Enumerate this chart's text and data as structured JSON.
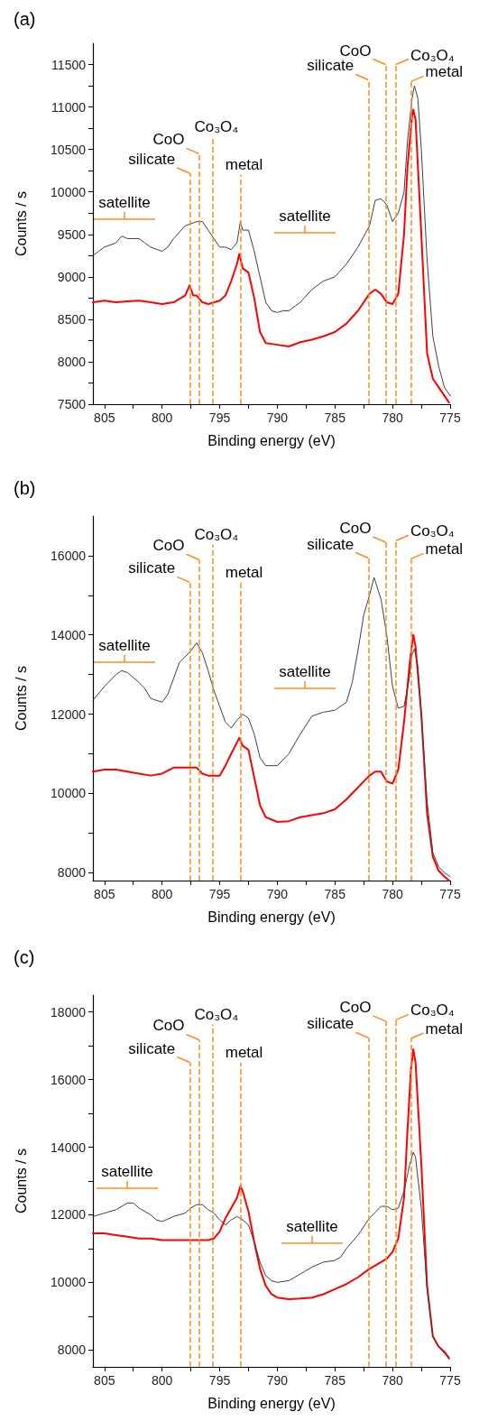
{
  "chart_data": [
    {
      "type": "line",
      "title": "(a)",
      "xlabel": "Binding energy (eV)",
      "ylabel": "Counts / s",
      "xlim": [
        806,
        775
      ],
      "xticks": [
        805,
        {
          "value": 802.5,
          "label": null
        },
        800,
        {
          "value": 797.5,
          "label": null
        },
        795,
        {
          "value": 792.5,
          "label": null
        },
        790,
        {
          "value": 787.5,
          "label": null
        },
        785,
        {
          "value": 782.5,
          "label": null
        },
        780,
        {
          "value": 777.5,
          "label": null
        },
        775
      ],
      "ylim": [
        7500,
        11750
      ],
      "yticks": [
        7500,
        {
          "value": 7750,
          "label": null
        },
        8000,
        {
          "value": 8250,
          "label": null
        },
        8500,
        {
          "value": 8750,
          "label": null
        },
        9000,
        {
          "value": 9250,
          "label": null
        },
        9500,
        {
          "value": 9750,
          "label": null
        },
        10000,
        {
          "value": 10250,
          "label": null
        },
        10500,
        {
          "value": 10750,
          "label": null
        },
        11000,
        {
          "value": 11250,
          "label": null
        },
        11500
      ],
      "ref_lines": [
        {
          "axis": "x",
          "value": 797.6,
          "color": "#ff8c1a",
          "line_style": "dashed"
        },
        {
          "axis": "x",
          "value": 796.8,
          "color": "#ff8c1a",
          "line_style": "dashed"
        },
        {
          "axis": "x",
          "value": 795.6,
          "color": "#ff8c1a",
          "line_style": "dashed"
        },
        {
          "axis": "x",
          "value": 793.2,
          "color": "#ff8c1a",
          "line_style": "dashed"
        },
        {
          "axis": "x",
          "value": 782.1,
          "color": "#ff8c1a",
          "line_style": "dashed"
        },
        {
          "axis": "x",
          "value": 780.6,
          "color": "#ff8c1a",
          "line_style": "dashed"
        },
        {
          "axis": "x",
          "value": 779.7,
          "color": "#ff8c1a",
          "line_style": "dashed"
        },
        {
          "axis": "x",
          "value": 778.4,
          "color": "#ff8c1a",
          "line_style": "dashed"
        }
      ],
      "annotations": [
        "satellite",
        "satellite",
        {
          "text": "silicate",
          "x": 797.6,
          "y": 10220
        },
        {
          "text": "CoO",
          "x": 796.8,
          "y": 10450
        },
        {
          "text": "Co₃O₄",
          "x": 795.6,
          "y": 10650
        },
        {
          "text": "metal",
          "x": 793.2,
          "y": 10200
        },
        {
          "text": "silicate",
          "x": 782.1,
          "y": 11320
        },
        {
          "text": "CoO",
          "x": 780.6,
          "y": 11500
        },
        {
          "text": "Co₃O₄",
          "x": 779.7,
          "y": 11500
        },
        {
          "text": "metal",
          "x": 778.4,
          "y": 11300
        }
      ],
      "series": [
        {
          "color": "#404040",
          "x": [
            806,
            805.5,
            805,
            804,
            803.5,
            803,
            802,
            801.5,
            801,
            800,
            799.5,
            799,
            798,
            797,
            796.5,
            796,
            795.5,
            795,
            794.5,
            794,
            793.5,
            793.2,
            793,
            792.5,
            792,
            791.5,
            791,
            790.5,
            790,
            789.5,
            789,
            788,
            787,
            786,
            785,
            784,
            783,
            782,
            781.5,
            781,
            780.5,
            780,
            779.5,
            779,
            778.7,
            778.3,
            778.1,
            777.8,
            777.5,
            777,
            776.5,
            776,
            775.5,
            775
          ],
          "values": [
            9250,
            9300,
            9350,
            9400,
            9480,
            9450,
            9450,
            9400,
            9350,
            9300,
            9350,
            9450,
            9600,
            9650,
            9650,
            9550,
            9450,
            9350,
            9350,
            9320,
            9400,
            9650,
            9550,
            9550,
            9300,
            9000,
            8700,
            8600,
            8580,
            8600,
            8600,
            8700,
            8850,
            8950,
            9000,
            9150,
            9350,
            9600,
            9900,
            9920,
            9850,
            9650,
            9750,
            10000,
            10600,
            11100,
            11250,
            11100,
            10500,
            9200,
            8300,
            7950,
            7700,
            7600
          ]
        },
        {
          "color": "#ff0000",
          "x": [
            806,
            805,
            804,
            803,
            802,
            801,
            800,
            799,
            798,
            797.6,
            797.3,
            797,
            796.5,
            796,
            795,
            794.5,
            794,
            793.5,
            793.3,
            793,
            792.5,
            792,
            791.5,
            791,
            790,
            789,
            788,
            787,
            786,
            785,
            784,
            783,
            782,
            781.5,
            781,
            780.5,
            780,
            779.5,
            779,
            778.7,
            778.3,
            778.2,
            778,
            777.5,
            777,
            776.5,
            776,
            775.5,
            775.1
          ],
          "values": [
            8700,
            8720,
            8700,
            8710,
            8720,
            8700,
            8680,
            8700,
            8780,
            8900,
            8780,
            8780,
            8700,
            8680,
            8720,
            8780,
            8950,
            9150,
            9270,
            9100,
            9050,
            8750,
            8350,
            8220,
            8200,
            8180,
            8230,
            8260,
            8300,
            8350,
            8450,
            8600,
            8800,
            8850,
            8800,
            8700,
            8680,
            8800,
            9500,
            10300,
            10900,
            10970,
            10850,
            9500,
            8100,
            7800,
            7700,
            7600,
            7520
          ]
        }
      ]
    },
    {
      "type": "line",
      "title": "(b)",
      "xlabel": "Binding energy (eV)",
      "ylabel": "Counts / s",
      "xlim": [
        806,
        775
      ],
      "xticks": [
        805,
        {
          "value": 802.5,
          "label": null
        },
        800,
        {
          "value": 797.5,
          "label": null
        },
        795,
        {
          "value": 792.5,
          "label": null
        },
        790,
        {
          "value": 787.5,
          "label": null
        },
        785,
        {
          "value": 782.5,
          "label": null
        },
        780,
        {
          "value": 777.5,
          "label": null
        },
        775
      ],
      "ylim": [
        7800,
        17000
      ],
      "yticks": [
        8000,
        {
          "value": 9000,
          "label": null
        },
        10000,
        {
          "value": 11000,
          "label": null
        },
        12000,
        {
          "value": 13000,
          "label": null
        },
        14000,
        {
          "value": 15000,
          "label": null
        },
        16000
      ],
      "ref_lines": [
        {
          "axis": "x",
          "value": 797.6,
          "color": "#ff8c1a",
          "line_style": "dashed"
        },
        {
          "axis": "x",
          "value": 796.8,
          "color": "#ff8c1a",
          "line_style": "dashed"
        },
        {
          "axis": "x",
          "value": 795.6,
          "color": "#ff8c1a",
          "line_style": "dashed"
        },
        {
          "axis": "x",
          "value": 793.2,
          "color": "#ff8c1a",
          "line_style": "dashed"
        },
        {
          "axis": "x",
          "value": 782.1,
          "color": "#ff8c1a",
          "line_style": "dashed"
        },
        {
          "axis": "x",
          "value": 780.6,
          "color": "#ff8c1a",
          "line_style": "dashed"
        },
        {
          "axis": "x",
          "value": 779.7,
          "color": "#ff8c1a",
          "line_style": "dashed"
        },
        {
          "axis": "x",
          "value": 778.4,
          "color": "#ff8c1a",
          "line_style": "dashed"
        }
      ],
      "annotations": [
        "satellite",
        "satellite",
        {
          "text": "silicate",
          "x": 797.6,
          "y": 15330
        },
        {
          "text": "CoO",
          "x": 796.8,
          "y": 15900
        },
        {
          "text": "Co₃O₄",
          "x": 795.6,
          "y": 16280
        },
        {
          "text": "metal",
          "x": 793.2,
          "y": 15320
        },
        {
          "text": "silicate",
          "x": 782.1,
          "y": 15940
        },
        {
          "text": "CoO",
          "x": 780.6,
          "y": 16340
        },
        {
          "text": "Co₃O₄",
          "x": 779.7,
          "y": 16380
        },
        {
          "text": "metal",
          "x": 778.4,
          "y": 15920
        }
      ],
      "series": [
        {
          "color": "#404040",
          "x": [
            806,
            805,
            804,
            803.5,
            803,
            802,
            801.5,
            801,
            800,
            799.5,
            799,
            798.5,
            797.5,
            797,
            796.5,
            796,
            795.5,
            795,
            794.5,
            794,
            793.5,
            793,
            792.5,
            792,
            791.5,
            791,
            790,
            789,
            788,
            787,
            786,
            785,
            784,
            783.5,
            783,
            782.5,
            782,
            781.6,
            781,
            780.5,
            780,
            779.5,
            779,
            778.6,
            778.3,
            778.1,
            777.8,
            777.5,
            777,
            776.5,
            776,
            775.5,
            775
          ],
          "values": [
            12350,
            12700,
            13000,
            13100,
            13050,
            12800,
            12650,
            12400,
            12300,
            12500,
            12900,
            13300,
            13600,
            13800,
            13550,
            13100,
            12600,
            12200,
            11800,
            11650,
            11850,
            12000,
            11900,
            11500,
            10900,
            10700,
            10700,
            11000,
            11500,
            11950,
            12050,
            12100,
            12300,
            12800,
            13600,
            14500,
            15000,
            15450,
            14900,
            14000,
            12700,
            12150,
            12200,
            12800,
            13500,
            13650,
            13200,
            12000,
            9800,
            8500,
            8150,
            8000,
            7900
          ]
        },
        {
          "color": "#ff0000",
          "x": [
            806,
            805,
            804,
            803,
            802,
            801,
            800,
            799,
            798,
            797,
            796.5,
            796,
            795,
            794.5,
            794,
            793.3,
            793,
            792.5,
            792,
            791.5,
            791,
            790,
            789,
            788,
            787,
            786,
            785,
            784,
            783,
            782,
            781.5,
            781,
            780.5,
            780,
            779.5,
            779,
            778.5,
            778.2,
            778,
            777.5,
            777,
            776.5,
            776,
            775.5,
            775.1
          ],
          "values": [
            10550,
            10600,
            10600,
            10550,
            10500,
            10450,
            10500,
            10650,
            10650,
            10650,
            10500,
            10450,
            10450,
            10700,
            11000,
            11400,
            11200,
            11100,
            10400,
            9700,
            9400,
            9280,
            9300,
            9400,
            9450,
            9500,
            9600,
            9850,
            10150,
            10450,
            10550,
            10550,
            10300,
            10250,
            10600,
            11800,
            13300,
            14000,
            13700,
            12000,
            9500,
            8400,
            8050,
            7900,
            7800
          ]
        }
      ]
    },
    {
      "type": "line",
      "title": "(c)",
      "xlabel": "Binding energy (eV)",
      "ylabel": "Counts / s",
      "xlim": [
        806,
        775
      ],
      "xticks": [
        805,
        {
          "value": 802.5,
          "label": null
        },
        800,
        {
          "value": 797.5,
          "label": null
        },
        795,
        {
          "value": 792.5,
          "label": null
        },
        790,
        {
          "value": 787.5,
          "label": null
        },
        785,
        {
          "value": 782.5,
          "label": null
        },
        780,
        {
          "value": 777.5,
          "label": null
        },
        775
      ],
      "ylim": [
        7500,
        18500
      ],
      "yticks": [
        8000,
        {
          "value": 9000,
          "label": null
        },
        10000,
        {
          "value": 11000,
          "label": null
        },
        12000,
        {
          "value": 13000,
          "label": null
        },
        14000,
        {
          "value": 15000,
          "label": null
        },
        16000,
        {
          "value": 17000,
          "label": null
        },
        18000
      ],
      "ref_lines": [
        {
          "axis": "x",
          "value": 797.6,
          "color": "#ff8c1a",
          "line_style": "dashed"
        },
        {
          "axis": "x",
          "value": 796.8,
          "color": "#ff8c1a",
          "line_style": "dashed"
        },
        {
          "axis": "x",
          "value": 795.6,
          "color": "#ff8c1a",
          "line_style": "dashed"
        },
        {
          "axis": "x",
          "value": 793.2,
          "color": "#ff8c1a",
          "line_style": "dashed"
        },
        {
          "axis": "x",
          "value": 782.1,
          "color": "#ff8c1a",
          "line_style": "dashed"
        },
        {
          "axis": "x",
          "value": 780.6,
          "color": "#ff8c1a",
          "line_style": "dashed"
        },
        {
          "axis": "x",
          "value": 779.7,
          "color": "#ff8c1a",
          "line_style": "dashed"
        },
        {
          "axis": "x",
          "value": 778.4,
          "color": "#ff8c1a",
          "line_style": "dashed"
        }
      ],
      "annotations": [
        "satellite",
        "satellite",
        {
          "text": "silicate",
          "x": 797.6,
          "y": 16510
        },
        {
          "text": "CoO",
          "x": 796.8,
          "y": 17180
        },
        {
          "text": "Co₃O₄",
          "x": 795.6,
          "y": 17630
        },
        {
          "text": "metal",
          "x": 793.2,
          "y": 16510
        },
        {
          "text": "silicate",
          "x": 782.1,
          "y": 17240
        },
        {
          "text": "CoO",
          "x": 780.6,
          "y": 17730
        },
        {
          "text": "Co₃O₄",
          "x": 779.7,
          "y": 17770
        },
        {
          "text": "metal",
          "x": 778.4,
          "y": 17220
        }
      ],
      "series": [
        {
          "color": "#404040",
          "x": [
            806,
            805,
            804,
            803,
            802.5,
            802,
            801,
            800.5,
            800,
            799,
            798,
            797.5,
            797,
            796.5,
            796,
            795.5,
            795,
            794.5,
            794,
            793.5,
            793,
            792.5,
            792,
            791.5,
            791,
            790.5,
            790,
            789,
            788,
            787,
            786,
            785,
            784.5,
            784,
            783,
            782,
            781,
            780.5,
            780,
            779.5,
            779,
            778.5,
            778.2,
            778,
            777.5,
            777,
            776.5,
            776,
            775.5,
            775.1
          ],
          "values": [
            11950,
            12050,
            12150,
            12350,
            12350,
            12200,
            12000,
            11850,
            11800,
            11950,
            12050,
            12200,
            12300,
            12300,
            12150,
            12050,
            11850,
            11700,
            11850,
            11950,
            11850,
            11700,
            11200,
            10600,
            10200,
            10050,
            10000,
            10050,
            10250,
            10450,
            10600,
            10650,
            10750,
            11000,
            11400,
            11900,
            12250,
            12250,
            12150,
            12200,
            12700,
            13500,
            13850,
            13700,
            12200,
            9800,
            8400,
            8100,
            7900,
            7800
          ]
        },
        {
          "color": "#ff0000",
          "x": [
            806,
            805,
            804,
            803,
            802,
            801,
            800,
            799,
            798,
            797,
            796,
            795.5,
            795,
            794.5,
            794,
            793.5,
            793.2,
            793,
            792.5,
            792,
            791.5,
            791,
            790.5,
            790,
            789,
            788,
            787,
            786,
            785,
            784,
            783,
            782,
            781,
            780.5,
            780,
            779.5,
            779,
            778.7,
            778.4,
            778.2,
            778,
            777.5,
            777,
            776.5,
            776,
            775.5,
            775.1
          ],
          "values": [
            11450,
            11450,
            11400,
            11350,
            11300,
            11300,
            11250,
            11250,
            11250,
            11250,
            11250,
            11300,
            11500,
            11900,
            12200,
            12500,
            12850,
            12700,
            12100,
            11200,
            10400,
            9900,
            9650,
            9550,
            9500,
            9520,
            9550,
            9650,
            9800,
            9950,
            10150,
            10400,
            10600,
            10700,
            10900,
            11300,
            12500,
            14500,
            16300,
            16900,
            16500,
            13500,
            9900,
            8400,
            8100,
            7950,
            7750
          ]
        }
      ]
    }
  ]
}
